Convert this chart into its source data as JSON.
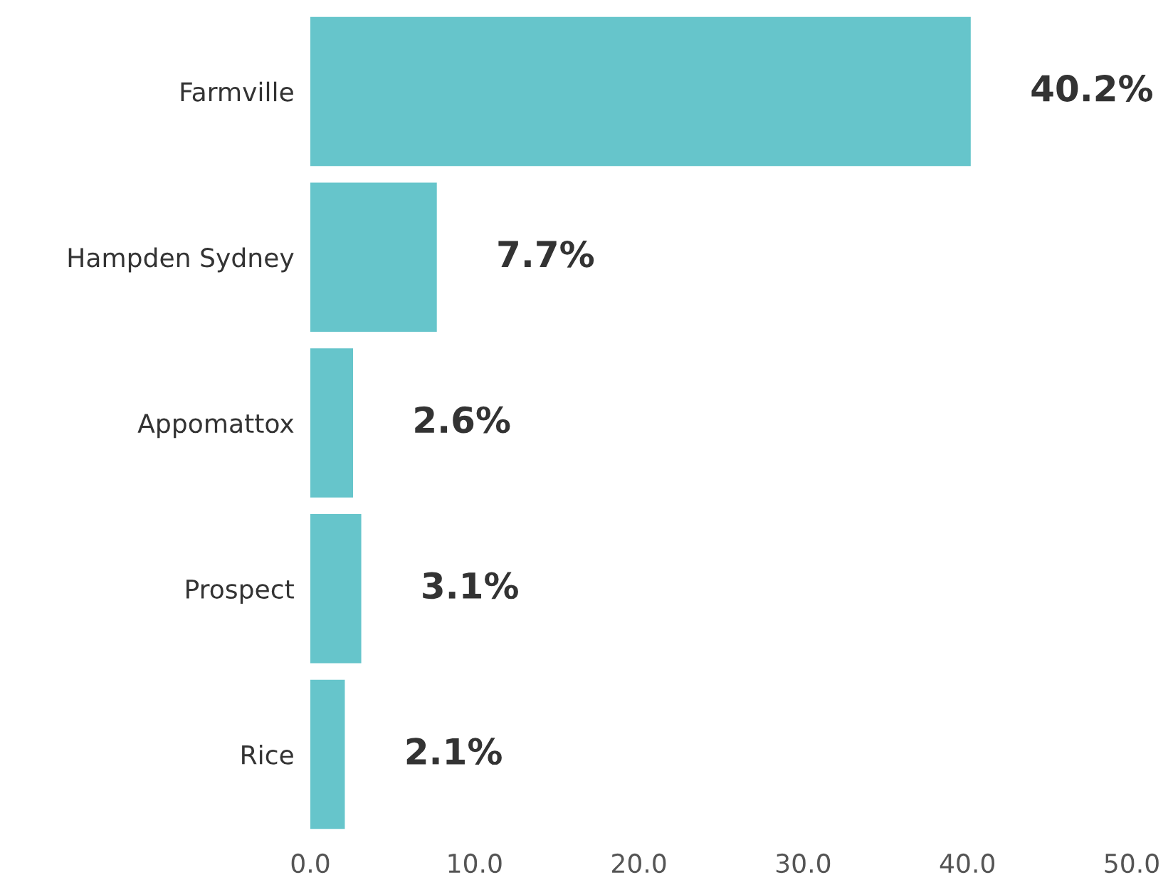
{
  "chart_data": {
    "type": "bar",
    "orientation": "horizontal",
    "categories": [
      "Farmville",
      "Hampden Sydney",
      "Appomattox",
      "Prospect",
      "Rice"
    ],
    "values": [
      40.2,
      7.7,
      2.6,
      3.1,
      2.1
    ],
    "value_labels": [
      "40.2%",
      "7.7%",
      "2.6%",
      "3.1%",
      "2.1%"
    ],
    "color": "#66c5cb",
    "xlim": [
      0,
      50
    ],
    "xticks": [
      {
        "value": 0,
        "label": "0.0"
      },
      {
        "value": 10,
        "label": "10.0"
      },
      {
        "value": 20,
        "label": "20.0"
      },
      {
        "value": 30,
        "label": "30.0"
      },
      {
        "value": 40,
        "label": "40.0"
      },
      {
        "value": 50,
        "label": "50.0"
      }
    ],
    "grid": false,
    "legend": false
  }
}
